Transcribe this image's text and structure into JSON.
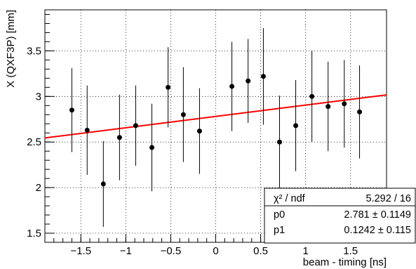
{
  "chart_data": {
    "type": "scatter",
    "xlabel": "beam - timing [ns]",
    "ylabel": "X (QXF3P) [mm]",
    "xlim": [
      -1.9,
      1.9
    ],
    "ylim": [
      1.4,
      3.95
    ],
    "x_ticks": [
      -1.5,
      -1,
      -0.5,
      0,
      0.5,
      1,
      1.5
    ],
    "x_tick_labels": [
      "−1.5",
      "−1",
      "−0.5",
      "0",
      "0.5",
      "1",
      "1.5"
    ],
    "y_ticks": [
      1.5,
      2,
      2.5,
      3,
      3.5
    ],
    "y_tick_labels": [
      "1.5",
      "2",
      "2.5",
      "3",
      "3.5"
    ],
    "grid": true,
    "points": [
      {
        "x": -1.6,
        "y": 2.85,
        "err": 0.46
      },
      {
        "x": -1.43,
        "y": 2.63,
        "err": 0.49
      },
      {
        "x": -1.25,
        "y": 2.04,
        "err": 0.47
      },
      {
        "x": -1.07,
        "y": 2.55,
        "err": 0.47
      },
      {
        "x": -0.89,
        "y": 2.68,
        "err": 0.44
      },
      {
        "x": -0.71,
        "y": 2.44,
        "err": 0.48
      },
      {
        "x": -0.53,
        "y": 3.1,
        "err": 0.44
      },
      {
        "x": -0.36,
        "y": 2.8,
        "err": 0.52
      },
      {
        "x": -0.18,
        "y": 2.62,
        "err": 0.47
      },
      {
        "x": 0.18,
        "y": 3.11,
        "err": 0.49
      },
      {
        "x": 0.36,
        "y": 3.17,
        "err": 0.46
      },
      {
        "x": 0.53,
        "y": 3.22,
        "err": 0.53
      },
      {
        "x": 0.71,
        "y": 2.5,
        "err": 0.51
      },
      {
        "x": 0.89,
        "y": 2.68,
        "err": 0.5
      },
      {
        "x": 1.07,
        "y": 3.0,
        "err": 0.5
      },
      {
        "x": 1.25,
        "y": 2.89,
        "err": 0.49
      },
      {
        "x": 1.43,
        "y": 2.92,
        "err": 0.48
      },
      {
        "x": 1.6,
        "y": 2.83,
        "err": 0.51
      }
    ],
    "fit": {
      "function": "pol1",
      "p0": 2.781,
      "p1": 0.1242,
      "color": "#ff0000"
    },
    "stats": {
      "rows": [
        {
          "label": "χ² / ndf",
          "value": "5.292 / 16"
        },
        {
          "label": "p0",
          "value": "2.781 ± 0.1149"
        },
        {
          "label": "p1",
          "value": "0.1242 ± 0.115"
        }
      ]
    }
  }
}
